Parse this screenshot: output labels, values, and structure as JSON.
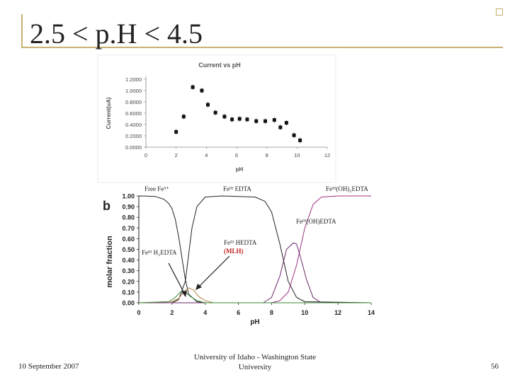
{
  "slide": {
    "title": "2.5 < p.H < 4.5",
    "footer_date": "10 September 2007",
    "footer_center_line1": "University of Idaho - Washington State",
    "footer_center_line2": "University",
    "page_number": "56",
    "accent_color": "#c8b070"
  },
  "chart_data": [
    {
      "type": "scatter",
      "title": "Current vs pH",
      "xlabel": "pH",
      "ylabel": "Current(uA)",
      "xlim": [
        0,
        12
      ],
      "ylim": [
        0,
        1.2
      ],
      "x_ticks": [
        "0",
        "2",
        "4",
        "6",
        "8",
        "10",
        "12"
      ],
      "y_ticks": [
        "0.0000",
        "0.2000",
        "0.4000",
        "0.6000",
        "0.8000",
        "1.0000",
        "1.2000"
      ],
      "grid": false,
      "series": [
        {
          "points": [
            [
              2.0,
              0.27
            ],
            [
              2.5,
              0.54
            ],
            [
              3.1,
              1.06
            ],
            [
              3.7,
              1.0
            ],
            [
              4.1,
              0.75
            ],
            [
              4.6,
              0.61
            ],
            [
              5.2,
              0.54
            ],
            [
              5.7,
              0.49
            ],
            [
              6.2,
              0.5
            ],
            [
              6.7,
              0.49
            ],
            [
              7.3,
              0.46
            ],
            [
              7.9,
              0.46
            ],
            [
              8.5,
              0.48
            ],
            [
              8.9,
              0.35
            ],
            [
              9.3,
              0.43
            ],
            [
              9.8,
              0.21
            ],
            [
              10.2,
              0.12
            ]
          ]
        }
      ]
    },
    {
      "type": "line",
      "panel_label": "b",
      "xlabel": "pH",
      "ylabel": "molar fraction",
      "xlim": [
        0,
        14
      ],
      "ylim": [
        0,
        1.0
      ],
      "x_ticks": [
        "0",
        "2",
        "4",
        "6",
        "8",
        "10",
        "12",
        "14"
      ],
      "y_ticks": [
        "0.00",
        "0.10",
        "0.20",
        "0.30",
        "0.40",
        "0.50",
        "0.60",
        "0.70",
        "0.80",
        "0.90",
        "1.00"
      ],
      "annotations": {
        "free_fe": "Free Fe³⁺",
        "fe_edta": "Feᴵᴵᴵ EDTA",
        "fe_oh2_edta": "Feᴵᴵᴵ(OH)₂EDTA",
        "fe_oh_edta": "Feᴵᴵᴵ(OH)EDTA",
        "fe_h2_edta": "Feᴵᴵᴵ H₂EDTA",
        "fe_hedta": "Feᴵᴵᴵ HEDTA",
        "mlh": "(MLH)"
      },
      "series": [
        {
          "color": "#222222",
          "x": [
            0,
            0.5,
            1,
            1.5,
            1.8,
            2,
            2.2,
            2.4,
            2.6,
            2.8,
            3,
            3.5,
            4,
            14
          ],
          "values": [
            1.0,
            0.999,
            0.995,
            0.97,
            0.93,
            0.88,
            0.78,
            0.62,
            0.42,
            0.22,
            0.08,
            0.01,
            0.0,
            0.0
          ]
        },
        {
          "color": "#222222",
          "x": [
            0,
            2,
            2.4,
            2.8,
            3.0,
            3.2,
            3.5,
            4,
            5,
            7,
            7.6,
            8.0,
            8.5,
            9.0,
            9.5,
            10,
            14
          ],
          "values": [
            0,
            0,
            0.03,
            0.2,
            0.45,
            0.7,
            0.9,
            0.99,
            1.0,
            0.99,
            0.95,
            0.85,
            0.55,
            0.2,
            0.05,
            0.01,
            0.0
          ]
        },
        {
          "color": "#a03080",
          "x": [
            0,
            8,
            8.5,
            9,
            9.5,
            10,
            10.5,
            11,
            12,
            14
          ],
          "values": [
            0,
            0,
            0.02,
            0.1,
            0.35,
            0.7,
            0.92,
            0.99,
            1.0,
            1.0
          ]
        },
        {
          "color": "#6a2a6a",
          "x": [
            0,
            7.5,
            8,
            8.5,
            8.9,
            9.3,
            9.5,
            9.7,
            10.1,
            10.5,
            11,
            14
          ],
          "values": [
            0,
            0,
            0.05,
            0.25,
            0.5,
            0.56,
            0.55,
            0.45,
            0.22,
            0.05,
            0.0,
            0.0
          ]
        },
        {
          "color": "#b08040",
          "x": [
            0,
            2,
            2.4,
            2.7,
            3.0,
            3.3,
            3.6,
            4.0,
            4.5,
            14
          ],
          "values": [
            0,
            0.01,
            0.04,
            0.1,
            0.14,
            0.12,
            0.06,
            0.02,
            0.0,
            0.0
          ]
        },
        {
          "color": "#3a8a3a",
          "x": [
            0,
            1.8,
            2.2,
            2.5,
            2.8,
            3.1,
            3.5,
            4.0,
            14
          ],
          "values": [
            0,
            0.01,
            0.05,
            0.1,
            0.1,
            0.06,
            0.02,
            0.0,
            0.0
          ]
        }
      ]
    }
  ]
}
